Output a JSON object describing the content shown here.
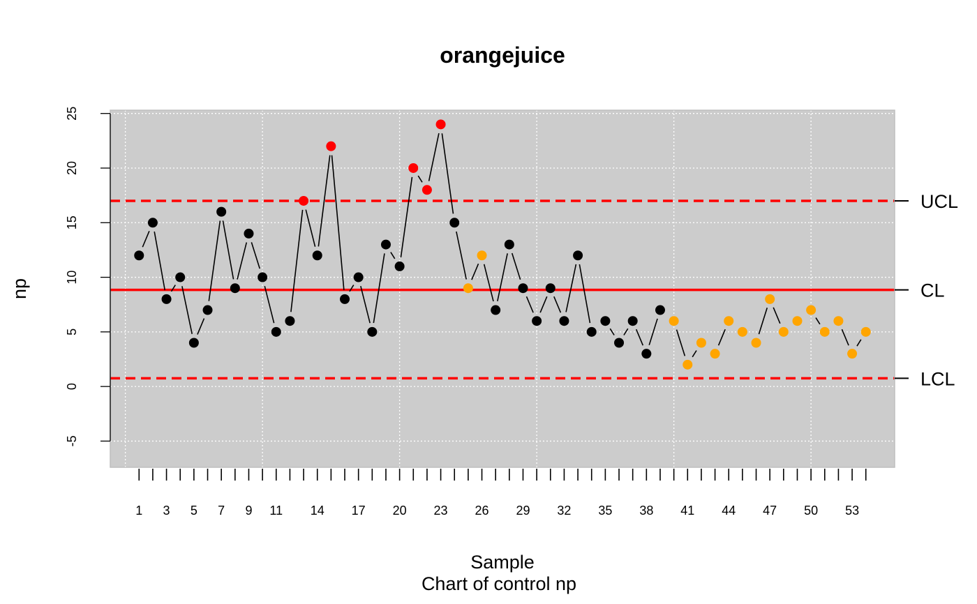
{
  "chart_data": {
    "type": "line",
    "title": "orangejuice",
    "xlabel": "Sample",
    "subtitle": "Chart of control np",
    "ylabel": "np",
    "ylim": [
      -7.4,
      25.3
    ],
    "xlim": [
      -1.1,
      56.1
    ],
    "y_ticks": [
      -5,
      0,
      5,
      10,
      15,
      20,
      25
    ],
    "x_tick_labels": [
      1,
      3,
      5,
      7,
      9,
      11,
      14,
      17,
      20,
      23,
      26,
      29,
      32,
      35,
      38,
      41,
      44,
      47,
      50,
      53
    ],
    "grid": true,
    "control_limits": {
      "UCL": {
        "label": "UCL",
        "value": 17
      },
      "CL": {
        "label": "CL",
        "value": 8.85
      },
      "LCL": {
        "label": "LCL",
        "value": 0.75
      }
    },
    "calibration_cutoff": 40,
    "x": [
      1,
      2,
      3,
      4,
      5,
      6,
      7,
      8,
      9,
      10,
      11,
      12,
      13,
      14,
      15,
      16,
      17,
      18,
      19,
      20,
      21,
      22,
      23,
      24,
      25,
      26,
      27,
      28,
      29,
      30,
      31,
      32,
      33,
      34,
      35,
      36,
      37,
      38,
      39,
      40,
      41,
      42,
      43,
      44,
      45,
      46,
      47,
      48,
      49,
      50,
      51,
      52,
      53,
      54
    ],
    "values": [
      12,
      15,
      8,
      10,
      4,
      7,
      16,
      9,
      14,
      10,
      5,
      6,
      17,
      12,
      22,
      8,
      10,
      5,
      13,
      11,
      20,
      18,
      24,
      15,
      9,
      12,
      7,
      13,
      9,
      6,
      9,
      6,
      12,
      5,
      6,
      4,
      6,
      3,
      7,
      6,
      2,
      4,
      3,
      6,
      5,
      4,
      8,
      5,
      6,
      7,
      5,
      6,
      3,
      5
    ],
    "point_status": [
      "in",
      "in",
      "in",
      "in",
      "in",
      "in",
      "in",
      "in",
      "in",
      "in",
      "in",
      "in",
      "out",
      "in",
      "out",
      "in",
      "in",
      "in",
      "in",
      "in",
      "out",
      "out",
      "out",
      "in",
      "violating",
      "violating",
      "in",
      "in",
      "in",
      "in",
      "in",
      "in",
      "in",
      "in",
      "in",
      "in",
      "in",
      "in",
      "in",
      "violating",
      "violating",
      "violating",
      "violating",
      "violating",
      "violating",
      "violating",
      "violating",
      "violating",
      "violating",
      "violating",
      "violating",
      "violating",
      "violating",
      "violating"
    ],
    "colors": {
      "in": "#000000",
      "out": "#ff0000",
      "violating": "#ffa500",
      "limit": "#ff0000",
      "panel": "#cccccc",
      "grid": "#ffffff",
      "frame": "#bebebe"
    }
  }
}
